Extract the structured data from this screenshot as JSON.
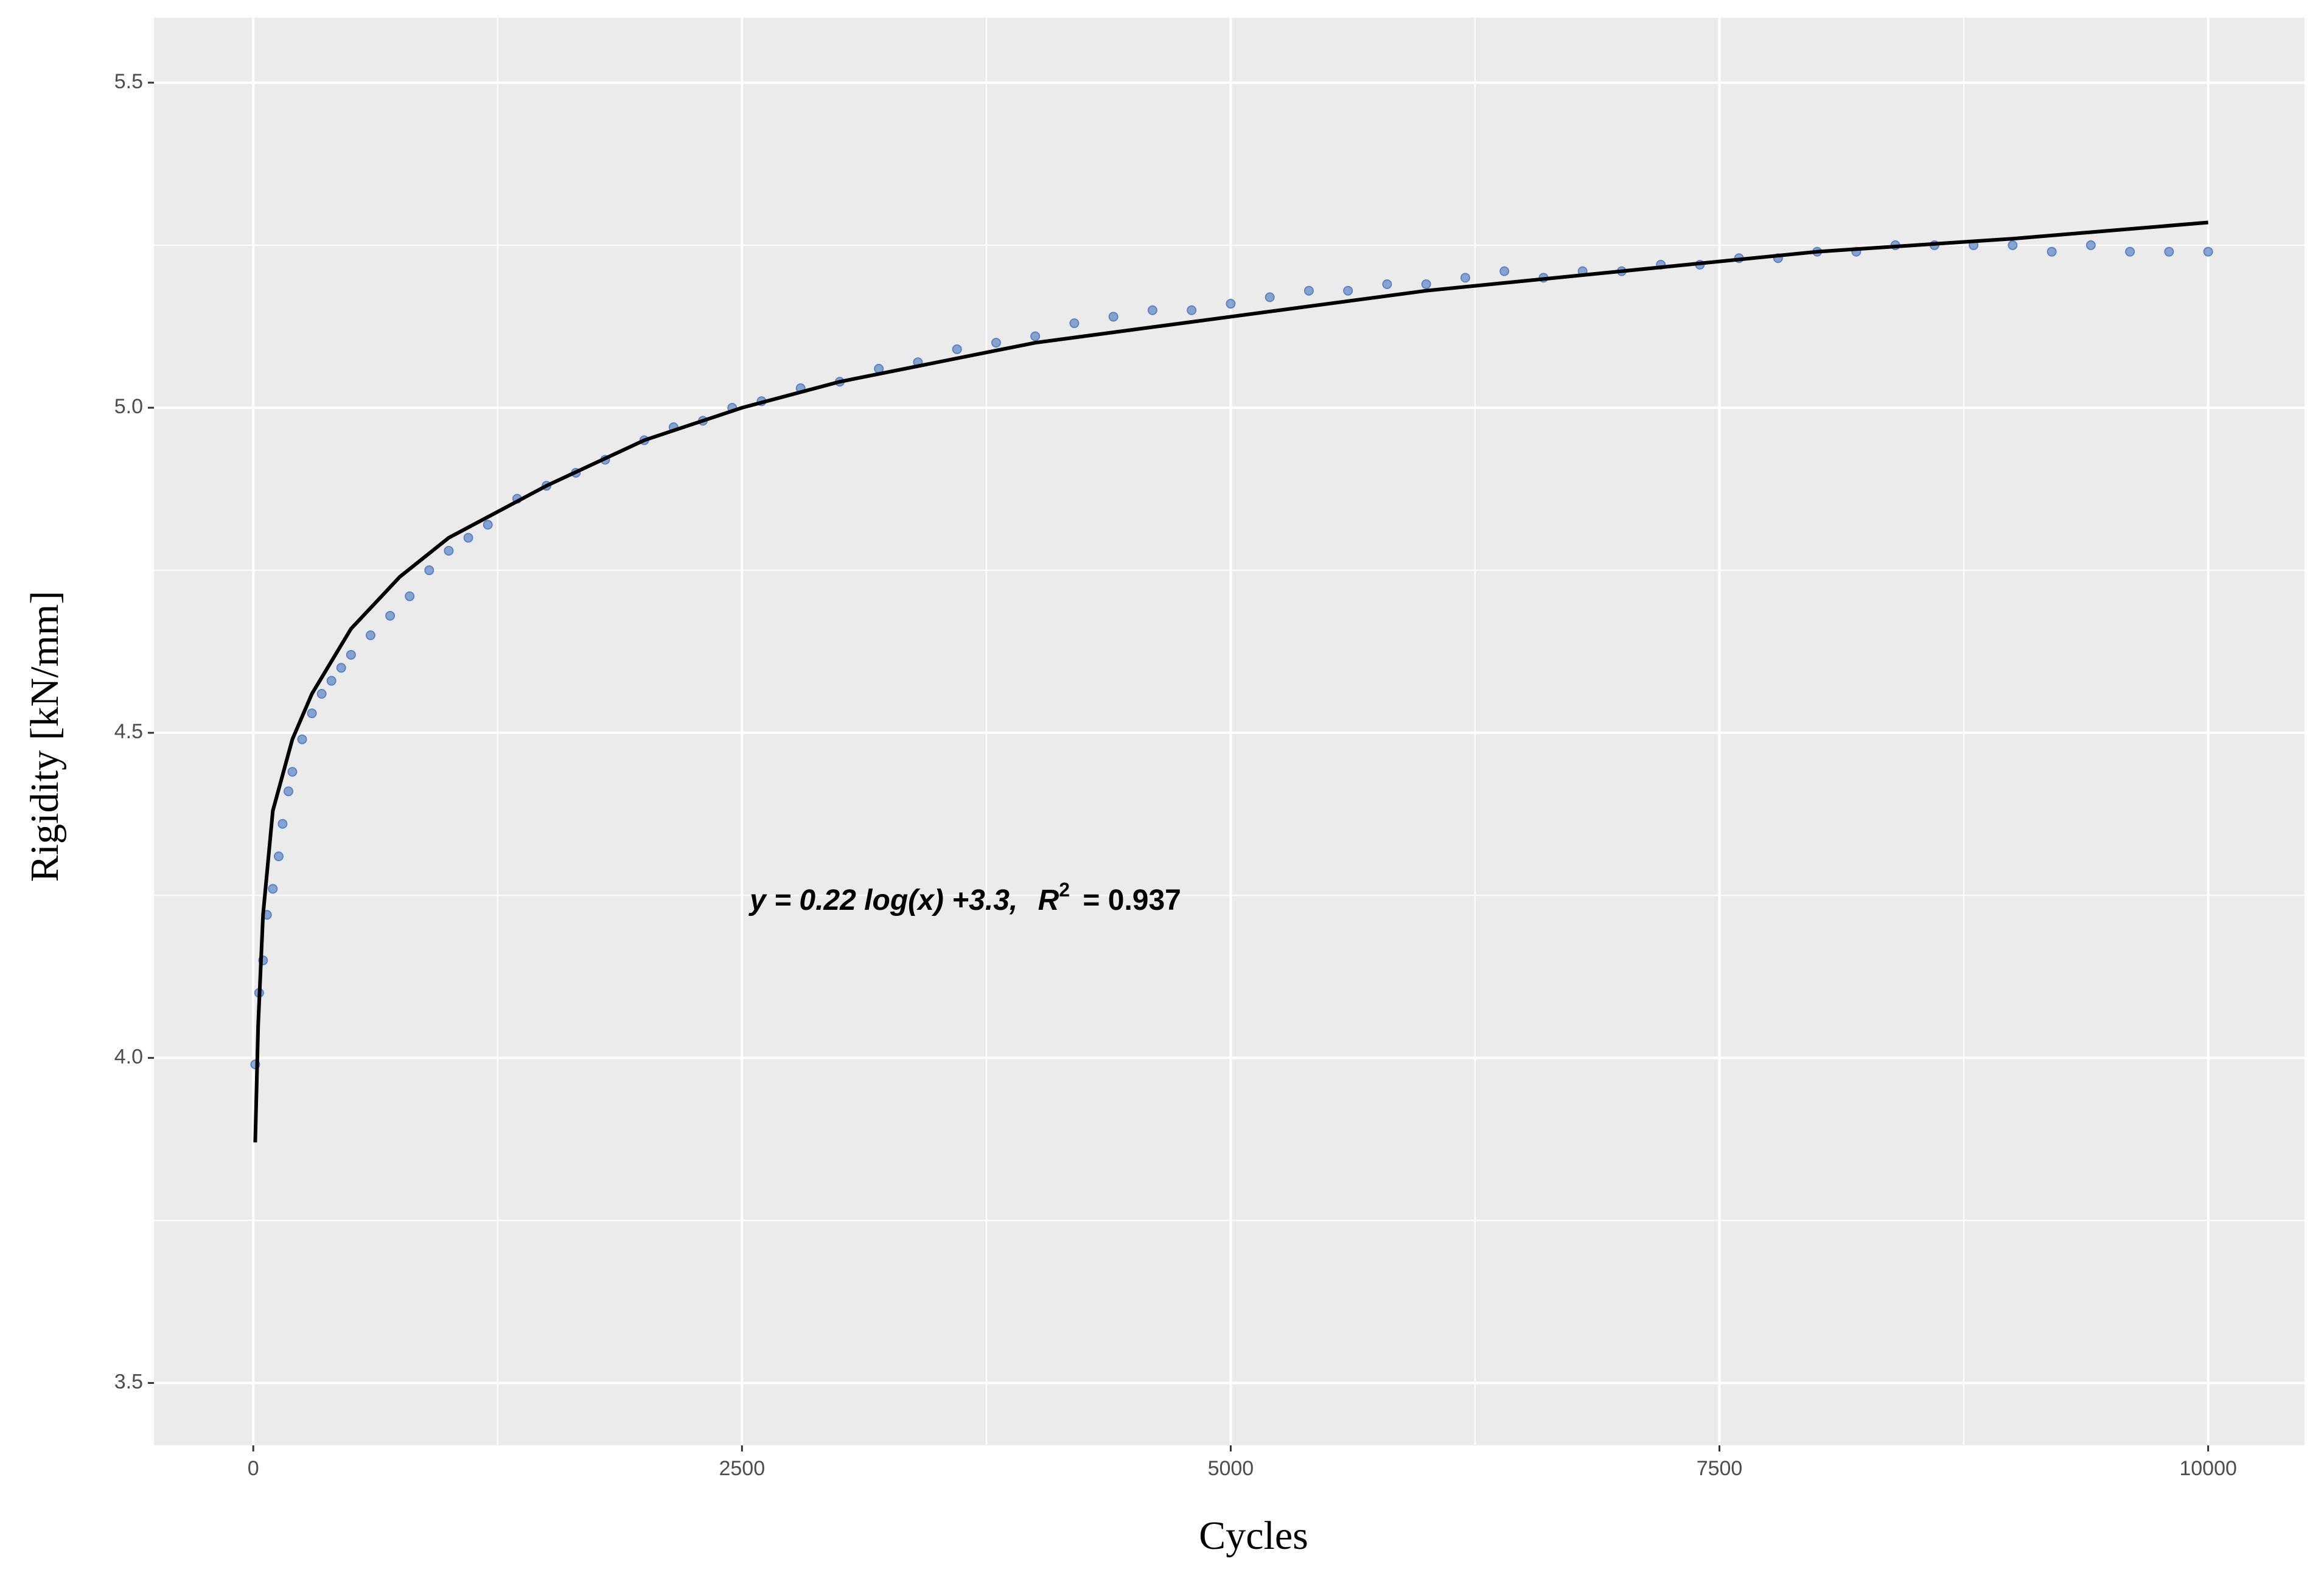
{
  "chart_data": {
    "type": "scatter",
    "x_label": "Cycles",
    "y_label": "Rigidity  [kN/mm]",
    "annotation": {
      "lhs": "y = 0.22 log(x) +3.3,",
      "r": "R",
      "sup": "2",
      "rhs": "= 0.937"
    },
    "xlim": [
      -508,
      10493
    ],
    "ylim": [
      3.404,
      5.6
    ],
    "xticks": [
      0,
      2500,
      5000,
      7500,
      10000
    ],
    "yticks": [
      3.5,
      {
        "value": 4,
        "label": "4.0"
      },
      4.5,
      {
        "value": 5,
        "label": "5.0"
      },
      5.5
    ],
    "x_minor_grid": [
      1250,
      3750,
      6250,
      8750
    ],
    "y_minor_grid": [
      3.75,
      4.25,
      4.75,
      5.25
    ],
    "grid": true,
    "background": "#ebebeb",
    "series": [
      {
        "type": "scatter",
        "color": "#5b84c4",
        "x": [
          10,
          30,
          50,
          70,
          100,
          130,
          150,
          180,
          200,
          250,
          300,
          350,
          400,
          450,
          500,
          600,
          700,
          800,
          900,
          1000,
          1100,
          1200,
          1350,
          1500,
          1650,
          1800,
          2000,
          2150,
          2300,
          2450,
          2600,
          2800,
          3000,
          3200,
          3400,
          3600,
          3800,
          4000,
          4200,
          4400,
          4600,
          4800,
          5000,
          5200,
          5400,
          5600,
          5800,
          6000,
          6200,
          6400,
          6600,
          6800,
          7000,
          7200,
          7400,
          7600,
          7800,
          8000,
          8200,
          8400,
          8600,
          8800,
          9000,
          9200,
          9400,
          9600,
          9800,
          10000
        ],
        "values": [
          3.99,
          4.1,
          4.15,
          4.22,
          4.26,
          4.31,
          4.36,
          4.41,
          4.44,
          4.49,
          4.53,
          4.56,
          4.58,
          4.6,
          4.62,
          4.65,
          4.68,
          4.71,
          4.75,
          4.78,
          4.8,
          4.82,
          4.86,
          4.88,
          4.9,
          4.92,
          4.95,
          4.97,
          4.98,
          5.0,
          5.01,
          5.03,
          5.04,
          5.06,
          5.07,
          5.09,
          5.1,
          5.11,
          5.13,
          5.14,
          5.15,
          5.15,
          5.16,
          5.17,
          5.18,
          5.18,
          5.19,
          5.19,
          5.2,
          5.21,
          5.2,
          5.21,
          5.21,
          5.22,
          5.22,
          5.23,
          5.23,
          5.24,
          5.24,
          5.25,
          5.25,
          5.25,
          5.25,
          5.24,
          5.25,
          5.24,
          5.24,
          5.24
        ]
      },
      {
        "type": "line",
        "color": "#000000",
        "x": [
          10,
          25,
          50,
          100,
          200,
          300,
          500,
          750,
          1000,
          1500,
          2000,
          2500,
          3000,
          4000,
          5000,
          6000,
          7000,
          8000,
          9000,
          10000
        ],
        "values": [
          3.87,
          4.05,
          4.22,
          4.38,
          4.49,
          4.56,
          4.66,
          4.74,
          4.8,
          4.88,
          4.95,
          5.0,
          5.04,
          5.1,
          5.14,
          5.18,
          5.21,
          5.24,
          5.26,
          5.285
        ]
      }
    ]
  }
}
